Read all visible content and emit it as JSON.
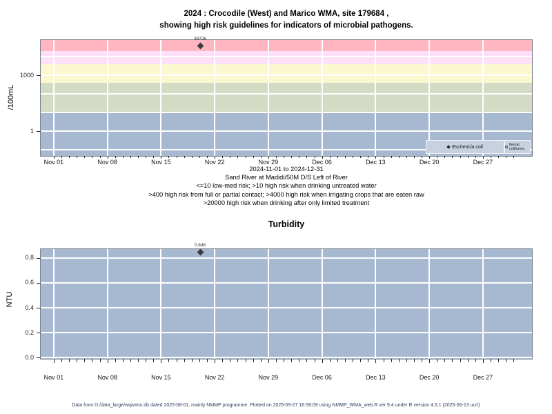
{
  "header": {
    "title_line1": "2024 : Crocodile (West) and Marico WMA, site 179684 ,",
    "title_line2": "showing high risk guidelines for indicators of microbial pathogens."
  },
  "chart_data": [
    {
      "id": "microbial-indicators",
      "type": "scatter",
      "title": "",
      "ylabel": "/100mL",
      "yscale": "log",
      "ylim_log10": [
        -1.32,
        4.9
      ],
      "y_ticks": [
        {
          "value": 1000,
          "label": "1000"
        },
        {
          "value": 1,
          "label": "1"
        }
      ],
      "h_gridline_values": [
        0.1,
        1,
        10,
        100,
        1000,
        10000
      ],
      "x_axis": {
        "start_date": "2024-11-01",
        "end_date": "2024-12-31",
        "range_days": [
          -1.7,
          62.4
        ],
        "major_ticks": [
          {
            "day": 0,
            "label": "Nov 01"
          },
          {
            "day": 7,
            "label": "Nov 08"
          },
          {
            "day": 14,
            "label": "Nov 15"
          },
          {
            "day": 21,
            "label": "Nov 22"
          },
          {
            "day": 28,
            "label": "Nov 29"
          },
          {
            "day": 35,
            "label": "Dec 06"
          },
          {
            "day": 42,
            "label": "Dec 13"
          },
          {
            "day": 49,
            "label": "Dec 20"
          },
          {
            "day": 56,
            "label": "Dec 27"
          }
        ],
        "minor_tick_day_range": [
          0,
          60
        ]
      },
      "bands": [
        {
          "from": 0.048,
          "to": 10,
          "color": "#a7b8d1"
        },
        {
          "from": 10,
          "to": 400,
          "color": "#d3dbc4"
        },
        {
          "from": 400,
          "to": 4000,
          "color": "#fbf7cf"
        },
        {
          "from": 4000,
          "to": 20000,
          "color": "#fde0f8"
        },
        {
          "from": 20000,
          "to": 79433,
          "color": "#ffb6c1"
        }
      ],
      "series": [
        {
          "name": "Eschericia coli",
          "marker": "filled-diamond",
          "points": [
            {
              "x_day": 19.1,
              "value": 39726,
              "label": "39726"
            }
          ]
        },
        {
          "name": "faecal coliforms",
          "marker": "open-circle",
          "points": []
        }
      ],
      "legend": {
        "position": "bottom-right",
        "items": [
          {
            "label": "Eschericia coli",
            "marker": "filled-diamond",
            "italic": true
          },
          {
            "label": "faecal coliforms",
            "marker": "open-circle",
            "italic": false
          }
        ]
      },
      "subtitle_lines": [
        "2024-11-01 to 2024-12-31",
        "Sand River at Madidi/50M D/S Left of River",
        "<=10 low-med risk; >10 high risk when drinking untreated water",
        ">400 high risk from full or partial contact; >4000 high risk when irrigating crops that are eaten raw",
        ">20000 high risk when drinking after only limited treatment"
      ]
    },
    {
      "id": "turbidity",
      "type": "scatter",
      "title": "Turbidity",
      "ylabel": "NTU",
      "yscale": "linear",
      "ylim": [
        -0.009,
        0.871
      ],
      "plot_bg": "#a7b8d1",
      "y_ticks": [
        {
          "value": 0.8,
          "label": "0.8"
        },
        {
          "value": 0.6,
          "label": "0.6"
        },
        {
          "value": 0.4,
          "label": "0.4"
        },
        {
          "value": 0.2,
          "label": "0.2"
        },
        {
          "value": 0,
          "label": "0.0"
        }
      ],
      "h_gridline_values": [
        0,
        0.2,
        0.4,
        0.6,
        0.8
      ],
      "x_axis": {
        "start_date": "2024-11-01",
        "end_date": "2024-12-31",
        "range_days": [
          -1.7,
          62.4
        ],
        "major_ticks": [
          {
            "day": 0,
            "label": "Nov 01"
          },
          {
            "day": 7,
            "label": "Nov 08"
          },
          {
            "day": 14,
            "label": "Nov 15"
          },
          {
            "day": 21,
            "label": "Nov 22"
          },
          {
            "day": 28,
            "label": "Nov 29"
          },
          {
            "day": 35,
            "label": "Dec 06"
          },
          {
            "day": 42,
            "label": "Dec 13"
          },
          {
            "day": 49,
            "label": "Dec 20"
          },
          {
            "day": 56,
            "label": "Dec 27"
          }
        ],
        "minor_tick_day_range": [
          0,
          60
        ]
      },
      "series": [
        {
          "name": "Turbidity",
          "marker": "filled-diamond",
          "points": [
            {
              "x_day": 19.1,
              "value": 0.846,
              "label": "0.846"
            }
          ]
        }
      ]
    }
  ],
  "footer": {
    "text": "Data from D:/data_large/wq/wms.db dated 2025-08-01, mainly NMMP programme. Plotted on 2025-09-27 16:58:09 using NMMP_WMA_web.R ver 9.4 under R version 4.5.1 (2025-06-13 ucrt)"
  }
}
